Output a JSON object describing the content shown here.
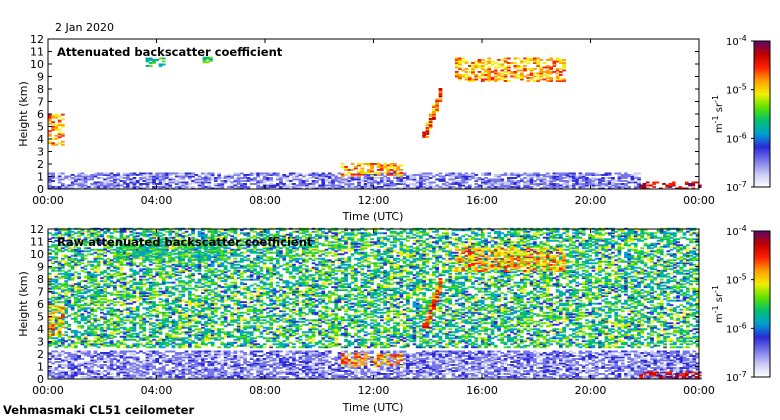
{
  "date": "2 Jan 2020",
  "footer": "Vehmasmaki CL51 ceilometer",
  "colors": {
    "cmap": [
      "#ffffff",
      "#c8c8f4",
      "#7777ea",
      "#2a2ad8",
      "#00a0d0",
      "#00c070",
      "#60e000",
      "#f0f000",
      "#ffa000",
      "#ff2000",
      "#c00000",
      "#5a0a6a"
    ]
  },
  "colorbar": {
    "ticks": [
      "10-4",
      "10-5",
      "10-6",
      "10-7"
    ],
    "tick_text": [
      {
        "base": "10",
        "exp": "-4"
      },
      {
        "base": "10",
        "exp": "-5"
      },
      {
        "base": "10",
        "exp": "-6"
      },
      {
        "base": "10",
        "exp": "-7"
      }
    ],
    "unit": {
      "m": "m",
      "m_exp": "-1",
      "sr": "sr",
      "sr_exp": "-1"
    }
  },
  "chart_data": [
    {
      "type": "heatmap",
      "title": "Attenuated backscatter coefficient",
      "xlabel": "Time (UTC)",
      "ylabel": "Height (km)",
      "xlim": [
        0,
        24
      ],
      "ylim": [
        0,
        12
      ],
      "xticks": [
        0,
        4,
        8,
        12,
        16,
        20,
        24
      ],
      "xtick_labels": [
        "00:00",
        "04:00",
        "08:00",
        "12:00",
        "16:00",
        "20:00",
        "00:00"
      ],
      "yticks": [
        0,
        1,
        2,
        3,
        4,
        5,
        6,
        7,
        8,
        9,
        10,
        11,
        12
      ],
      "colorbar_range": [
        1e-07,
        0.0001
      ],
      "colorbar_scale": "log",
      "features": [
        {
          "kind": "boundary_layer",
          "t": [
            0,
            21.8
          ],
          "h": [
            0,
            1.3
          ],
          "level": "low"
        },
        {
          "kind": "low_cloud",
          "t": [
            10.8,
            13.0
          ],
          "h": [
            1.0,
            2.0
          ],
          "level": "high"
        },
        {
          "kind": "low_cloud",
          "t": [
            21.8,
            24
          ],
          "h": [
            0.0,
            0.5
          ],
          "level": "very_high"
        },
        {
          "kind": "cloud_layer",
          "t": [
            0.0,
            0.5
          ],
          "h": [
            3.5,
            6.0
          ],
          "level": "high"
        },
        {
          "kind": "rising_cloud",
          "t": [
            13.8,
            14.5
          ],
          "h": [
            4.0,
            8.0
          ],
          "level": "high"
        },
        {
          "kind": "cirrus",
          "t": [
            15.0,
            19.0
          ],
          "h": [
            8.6,
            10.4
          ],
          "level": "high"
        },
        {
          "kind": "isolated_echo",
          "t": [
            3.6,
            4.3
          ],
          "h": [
            9.8,
            10.4
          ],
          "level": "moderate"
        },
        {
          "kind": "isolated_echo",
          "t": [
            5.7,
            6.0
          ],
          "h": [
            10.1,
            10.5
          ],
          "level": "moderate"
        }
      ]
    },
    {
      "type": "heatmap",
      "title": "Raw attenuated backscatter coefficient",
      "xlabel": "Time (UTC)",
      "ylabel": "Height (km)",
      "xlim": [
        0,
        24
      ],
      "ylim": [
        0,
        12
      ],
      "xticks": [
        0,
        4,
        8,
        12,
        16,
        20,
        24
      ],
      "xtick_labels": [
        "00:00",
        "04:00",
        "08:00",
        "12:00",
        "16:00",
        "20:00",
        "00:00"
      ],
      "yticks": [
        0,
        1,
        2,
        3,
        4,
        5,
        6,
        7,
        8,
        9,
        10,
        11,
        12
      ],
      "colorbar_range": [
        1e-07,
        0.0001
      ],
      "colorbar_scale": "log",
      "features": [
        {
          "kind": "noise_field",
          "t": [
            0,
            24
          ],
          "h": [
            2.5,
            12
          ],
          "level": "moderate"
        },
        {
          "kind": "boundary_layer",
          "t": [
            0,
            24
          ],
          "h": [
            0,
            2.2
          ],
          "level": "low"
        },
        {
          "kind": "low_cloud",
          "t": [
            10.8,
            13.0
          ],
          "h": [
            1.0,
            2.0
          ],
          "level": "high"
        },
        {
          "kind": "low_cloud",
          "t": [
            21.8,
            24
          ],
          "h": [
            0.0,
            0.5
          ],
          "level": "very_high"
        },
        {
          "kind": "cloud_layer",
          "t": [
            0.0,
            0.5
          ],
          "h": [
            3.5,
            6.0
          ],
          "level": "high"
        },
        {
          "kind": "rising_cloud",
          "t": [
            13.8,
            14.5
          ],
          "h": [
            4.0,
            8.0
          ],
          "level": "high"
        },
        {
          "kind": "cirrus",
          "t": [
            15.0,
            19.0
          ],
          "h": [
            8.6,
            10.4
          ],
          "level": "high"
        },
        {
          "kind": "high_layer",
          "t": [
            2.5,
            6.5
          ],
          "h": [
            9.5,
            11.0
          ],
          "level": "moderate"
        }
      ]
    }
  ]
}
